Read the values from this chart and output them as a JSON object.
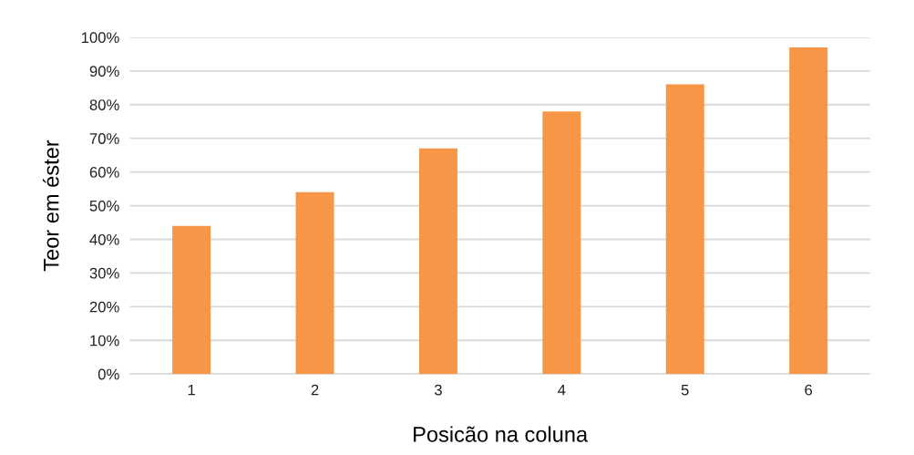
{
  "chart_data": {
    "type": "bar",
    "xlabel": "Posicão na coluna",
    "ylabel": "Teor em éster",
    "categories": [
      "1",
      "2",
      "3",
      "4",
      "5",
      "6"
    ],
    "values": [
      44,
      54,
      67,
      78,
      86,
      97
    ],
    "color": "#f79646",
    "ylim": [
      0,
      100
    ],
    "yticks": [
      {
        "value": 0,
        "label": "0%"
      },
      {
        "value": 10,
        "label": "10%"
      },
      {
        "value": 20,
        "label": "20%"
      },
      {
        "value": 30,
        "label": "30%"
      },
      {
        "value": 40,
        "label": "40%"
      },
      {
        "value": 50,
        "label": "50%"
      },
      {
        "value": 60,
        "label": "60%"
      },
      {
        "value": 70,
        "label": "70%"
      },
      {
        "value": 80,
        "label": "80%"
      },
      {
        "value": 90,
        "label": "90%"
      },
      {
        "value": 100,
        "label": "100%"
      }
    ],
    "grid": "y"
  }
}
